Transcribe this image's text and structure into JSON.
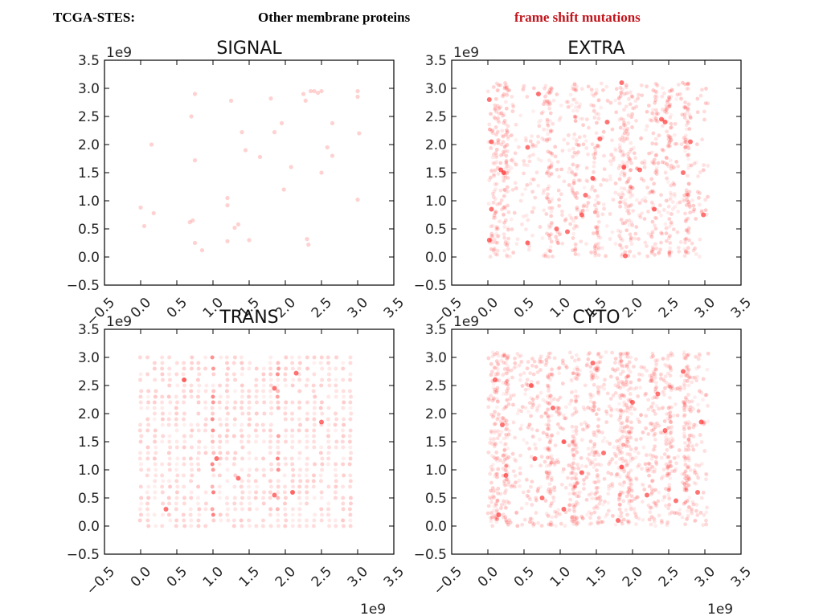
{
  "header": {
    "left": "TCGA-STES:",
    "middle": "Other membrane proteins",
    "right": "frame shift mutations",
    "right_color": "#c0141b"
  },
  "marker_color": "#ff0000",
  "chart_data": [
    {
      "type": "scatter",
      "title": "SIGNAL",
      "axis_offset_label": "1e9",
      "xlim": [
        -0.5,
        3.5
      ],
      "ylim": [
        -0.5,
        3.5
      ],
      "xticks": [
        "−0.5",
        "0.0",
        "0.5",
        "1.0",
        "1.5",
        "2.0",
        "2.5",
        "3.0",
        "3.5"
      ],
      "yticks": [
        "−0.5",
        "0.0",
        "0.5",
        "1.0",
        "1.5",
        "2.0",
        "2.5",
        "3.0",
        "3.5"
      ],
      "density": "sparse",
      "points": [
        [
          0.0,
          0.88
        ],
        [
          0.05,
          0.55
        ],
        [
          0.15,
          2.0
        ],
        [
          0.18,
          0.78
        ],
        [
          0.68,
          0.62
        ],
        [
          0.72,
          0.65
        ],
        [
          0.75,
          2.9
        ],
        [
          0.7,
          2.5
        ],
        [
          0.75,
          1.72
        ],
        [
          0.75,
          0.25
        ],
        [
          0.85,
          0.12
        ],
        [
          1.2,
          1.05
        ],
        [
          1.2,
          0.92
        ],
        [
          1.2,
          0.28
        ],
        [
          1.25,
          2.78
        ],
        [
          1.3,
          0.52
        ],
        [
          1.35,
          0.58
        ],
        [
          1.4,
          2.22
        ],
        [
          1.45,
          1.9
        ],
        [
          1.5,
          0.3
        ],
        [
          1.65,
          1.78
        ],
        [
          1.8,
          2.82
        ],
        [
          1.85,
          2.22
        ],
        [
          1.95,
          2.38
        ],
        [
          1.98,
          1.2
        ],
        [
          2.08,
          1.6
        ],
        [
          2.25,
          2.9
        ],
        [
          2.28,
          2.78
        ],
        [
          2.35,
          2.95
        ],
        [
          2.4,
          2.95
        ],
        [
          2.45,
          2.92
        ],
        [
          2.5,
          1.5
        ],
        [
          2.58,
          1.95
        ],
        [
          2.65,
          2.38
        ],
        [
          2.65,
          1.8
        ],
        [
          2.5,
          2.95
        ],
        [
          3.0,
          2.95
        ],
        [
          3.0,
          2.85
        ],
        [
          3.02,
          2.2
        ],
        [
          3.0,
          1.02
        ],
        [
          2.3,
          0.32
        ],
        [
          2.32,
          0.22
        ]
      ]
    },
    {
      "type": "scatter",
      "title": "EXTRA",
      "axis_offset_label": "1e9",
      "xlim": [
        -0.5,
        3.5
      ],
      "ylim": [
        -0.5,
        3.5
      ],
      "xticks": [
        "−0.5",
        "0.0",
        "0.5",
        "1.0",
        "1.5",
        "2.0",
        "2.5",
        "3.0",
        "3.5"
      ],
      "yticks": [
        "−0.5",
        "0.0",
        "0.5",
        "1.0",
        "1.5",
        "2.0",
        "2.5",
        "3.0",
        "3.5"
      ],
      "density": "dense",
      "points": [
        [
          0.02,
          2.8
        ],
        [
          0.05,
          2.05
        ],
        [
          0.05,
          0.85
        ],
        [
          0.02,
          0.3
        ],
        [
          0.18,
          1.55
        ],
        [
          0.22,
          1.5
        ],
        [
          0.55,
          1.95
        ],
        [
          0.55,
          0.25
        ],
        [
          0.95,
          0.5
        ],
        [
          1.1,
          0.45
        ],
        [
          1.3,
          0.75
        ],
        [
          1.35,
          1.1
        ],
        [
          1.45,
          1.4
        ],
        [
          1.55,
          2.1
        ],
        [
          1.65,
          2.4
        ],
        [
          1.85,
          3.1
        ],
        [
          1.9,
          0.02
        ],
        [
          1.88,
          1.6
        ],
        [
          2.1,
          1.55
        ],
        [
          2.4,
          2.45
        ],
        [
          2.45,
          2.4
        ],
        [
          2.7,
          1.5
        ],
        [
          2.8,
          2.05
        ],
        [
          2.98,
          0.75
        ],
        [
          0.7,
          2.9
        ],
        [
          2.3,
          0.85
        ]
      ]
    },
    {
      "type": "scatter",
      "title": "TRANS",
      "axis_offset_label": "1e9",
      "xlim": [
        -0.5,
        3.5
      ],
      "ylim": [
        -0.5,
        3.5
      ],
      "xticks": [
        "−0.5",
        "0.0",
        "0.5",
        "1.0",
        "1.5",
        "2.0",
        "2.5",
        "3.0",
        "3.5"
      ],
      "yticks": [
        "−0.5",
        "0.0",
        "0.5",
        "1.0",
        "1.5",
        "2.0",
        "2.5",
        "3.0",
        "3.5"
      ],
      "density": "grid",
      "points": [
        [
          1.85,
          2.45
        ],
        [
          2.15,
          2.72
        ],
        [
          1.35,
          0.85
        ],
        [
          1.85,
          0.55
        ],
        [
          0.6,
          2.6
        ],
        [
          1.05,
          1.2
        ],
        [
          2.5,
          1.85
        ],
        [
          0.35,
          0.3
        ],
        [
          2.1,
          0.6
        ]
      ]
    },
    {
      "type": "scatter",
      "title": "CYTO",
      "axis_offset_label": "1e9",
      "xlim": [
        -0.5,
        3.5
      ],
      "ylim": [
        -0.5,
        3.5
      ],
      "xticks": [
        "−0.5",
        "0.0",
        "0.5",
        "1.0",
        "1.5",
        "2.0",
        "2.5",
        "3.0",
        "3.5"
      ],
      "yticks": [
        "−0.5",
        "0.0",
        "0.5",
        "1.0",
        "1.5",
        "2.0",
        "2.5",
        "3.0",
        "3.5"
      ],
      "density": "very dense",
      "points": [
        [
          0.1,
          2.6
        ],
        [
          0.2,
          1.8
        ],
        [
          0.25,
          0.9
        ],
        [
          0.15,
          0.2
        ],
        [
          0.6,
          2.5
        ],
        [
          0.65,
          1.2
        ],
        [
          0.75,
          0.5
        ],
        [
          0.9,
          2.1
        ],
        [
          1.05,
          1.5
        ],
        [
          1.05,
          0.3
        ],
        [
          1.3,
          0.95
        ],
        [
          1.45,
          2.9
        ],
        [
          1.6,
          1.3
        ],
        [
          1.85,
          1.05
        ],
        [
          1.8,
          0.1
        ],
        [
          2.0,
          2.2
        ],
        [
          2.2,
          0.55
        ],
        [
          2.35,
          2.35
        ],
        [
          2.45,
          1.7
        ],
        [
          2.6,
          0.45
        ],
        [
          2.7,
          2.75
        ],
        [
          2.9,
          0.6
        ],
        [
          2.95,
          1.85
        ]
      ]
    }
  ]
}
